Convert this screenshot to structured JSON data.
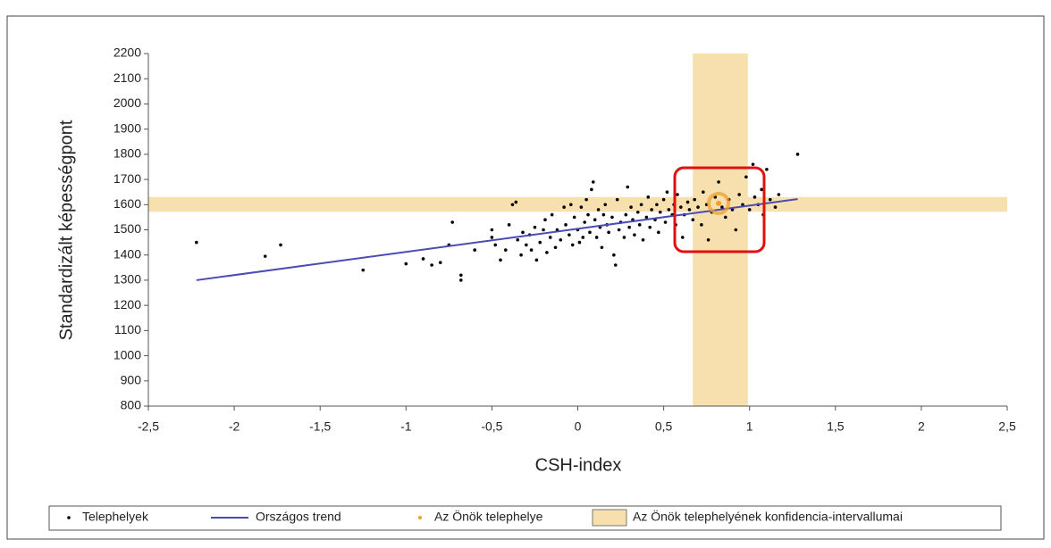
{
  "chart_data": {
    "type": "scatter",
    "xlabel": "CSH-index",
    "ylabel": "Standardizált képességpont",
    "xlim": [
      -2.5,
      2.5
    ],
    "ylim": [
      800,
      2200
    ],
    "xticks": [
      {
        "value": -2.5,
        "label": "-2,5"
      },
      -2,
      {
        "value": -1.5,
        "label": "-1,5"
      },
      -1,
      {
        "value": -0.5,
        "label": "-0,5"
      },
      0,
      {
        "value": 0.5,
        "label": "0,5"
      },
      1,
      {
        "value": 1.5,
        "label": "1,5"
      },
      2,
      {
        "value": 2.5,
        "label": "2,5"
      }
    ],
    "yticks": [
      800,
      900,
      1000,
      1100,
      1200,
      1300,
      1400,
      1500,
      1600,
      1700,
      1800,
      1900,
      2000,
      2100,
      2200
    ],
    "series": [
      {
        "name": "Telephelyek",
        "color": "#000000",
        "x": [
          -2.22,
          -1.82,
          -1.73,
          -1.25,
          -1.0,
          -0.9,
          -0.85,
          -0.8,
          -0.75,
          -0.73,
          -0.68,
          -0.68,
          -0.6,
          -0.5,
          -0.5,
          -0.48,
          -0.45,
          -0.42,
          -0.4,
          -0.38,
          -0.36,
          -0.35,
          -0.33,
          -0.32,
          -0.3,
          -0.28,
          -0.27,
          -0.25,
          -0.24,
          -0.22,
          -0.2,
          -0.19,
          -0.18,
          -0.16,
          -0.15,
          -0.13,
          -0.12,
          -0.1,
          -0.08,
          -0.07,
          -0.05,
          -0.04,
          -0.03,
          -0.02,
          0,
          0.01,
          0.02,
          0.03,
          0.04,
          0.05,
          0.06,
          0.07,
          0.08,
          0.09,
          0.1,
          0.11,
          0.12,
          0.13,
          0.14,
          0.15,
          0.16,
          0.17,
          0.18,
          0.2,
          0.21,
          0.22,
          0.23,
          0.24,
          0.25,
          0.27,
          0.28,
          0.29,
          0.3,
          0.31,
          0.32,
          0.33,
          0.35,
          0.36,
          0.37,
          0.38,
          0.4,
          0.41,
          0.42,
          0.43,
          0.45,
          0.46,
          0.47,
          0.48,
          0.5,
          0.51,
          0.52,
          0.53,
          0.55,
          0.56,
          0.57,
          0.58,
          0.6,
          0.61,
          0.62,
          0.64,
          0.65,
          0.67,
          0.68,
          0.7,
          0.72,
          0.73,
          0.75,
          0.76,
          0.78,
          0.8,
          0.82,
          0.84,
          0.86,
          0.88,
          0.9,
          0.92,
          0.94,
          0.96,
          0.98,
          1.0,
          1.02,
          1.03,
          1.05,
          1.07,
          1.08,
          1.1,
          1.12,
          1.15,
          1.17,
          1.28
        ],
        "values": [
          1450,
          1395,
          1440,
          1340,
          1365,
          1385,
          1360,
          1370,
          1440,
          1530,
          1300,
          1320,
          1420,
          1500,
          1470,
          1440,
          1380,
          1420,
          1520,
          1600,
          1610,
          1460,
          1400,
          1490,
          1440,
          1480,
          1420,
          1510,
          1380,
          1450,
          1500,
          1540,
          1410,
          1470,
          1560,
          1430,
          1500,
          1460,
          1590,
          1520,
          1480,
          1600,
          1440,
          1550,
          1500,
          1450,
          1590,
          1470,
          1530,
          1620,
          1560,
          1490,
          1660,
          1690,
          1540,
          1470,
          1580,
          1510,
          1430,
          1560,
          1600,
          1520,
          1490,
          1550,
          1400,
          1360,
          1620,
          1500,
          1530,
          1470,
          1560,
          1670,
          1510,
          1590,
          1540,
          1480,
          1570,
          1520,
          1600,
          1460,
          1550,
          1630,
          1510,
          1580,
          1540,
          1600,
          1490,
          1570,
          1620,
          1530,
          1650,
          1580,
          1560,
          1600,
          1520,
          1640,
          1590,
          1470,
          1560,
          1610,
          1580,
          1540,
          1620,
          1590,
          1520,
          1650,
          1600,
          1460,
          1570,
          1630,
          1690,
          1590,
          1550,
          1620,
          1580,
          1500,
          1640,
          1600,
          1710,
          1580,
          1760,
          1630,
          1600,
          1660,
          1560,
          1740,
          1620,
          1590,
          1640,
          1800
        ]
      },
      {
        "name": "Országos trend",
        "color": "#4b4bb4",
        "x": [
          -2.22,
          1.28
        ],
        "values": [
          1300,
          1622
        ]
      },
      {
        "name": "Az Önök telephelye",
        "color": "#f0a030",
        "x": [
          0.82
        ],
        "values": [
          1605
        ]
      }
    ],
    "band": {
      "name": "Az Önök telephelyének konfidencia-intervallumai",
      "color": "#f7dfae",
      "x": [
        0.67,
        0.99
      ],
      "y": [
        1572,
        1630
      ]
    }
  }
}
